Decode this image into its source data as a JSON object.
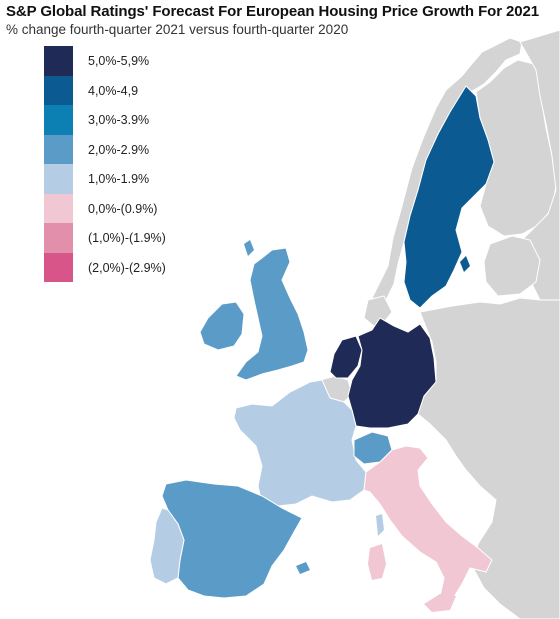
{
  "title": "S&P Global Ratings' Forecast For European Housing Price Growth For 2021",
  "subtitle": "% change fourth-quarter 2021 versus fourth-quarter 2020",
  "colors": {
    "sea": "#ffffff",
    "no_data": "#d4d4d4",
    "border": "#ffffff"
  },
  "legend": [
    {
      "label": "5,0%-5,9%",
      "color": "#1f2a56"
    },
    {
      "label": "4,0%-4,9",
      "color": "#0b5a92"
    },
    {
      "label": "3,0%-3.9%",
      "color": "#0c80b3"
    },
    {
      "label": "2,0%-2.9%",
      "color": "#5b9bc8"
    },
    {
      "label": "1,0%-1.9%",
      "color": "#b4cde4"
    },
    {
      "label": "0,0%-(0.9%)",
      "color": "#f2c7d4"
    },
    {
      "label": "(1,0%)-(1.9%)",
      "color": "#e18fab"
    },
    {
      "label": "(2,0%)-(2.9%)",
      "color": "#d75588"
    }
  ],
  "countries": [
    {
      "name": "Sweden",
      "class": "4,0%-4,9"
    },
    {
      "name": "Germany",
      "class": "5,0%-5,9%"
    },
    {
      "name": "Netherlands",
      "class": "5,0%-5,9%"
    },
    {
      "name": "United Kingdom",
      "class": "2,0%-2.9%"
    },
    {
      "name": "Ireland",
      "class": "2,0%-2.9%"
    },
    {
      "name": "Spain",
      "class": "2,0%-2.9%"
    },
    {
      "name": "Switzerland",
      "class": "2,0%-2.9%"
    },
    {
      "name": "France",
      "class": "1,0%-1.9%"
    },
    {
      "name": "Portugal",
      "class": "1,0%-1.9%"
    },
    {
      "name": "Italy",
      "class": "0,0%-(0.9%)"
    }
  ]
}
